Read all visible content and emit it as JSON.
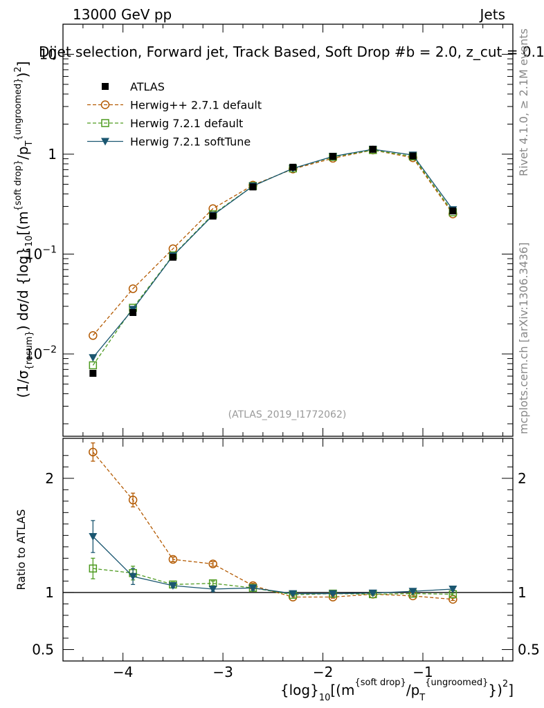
{
  "header": {
    "energy_label": "13000 GeV pp",
    "category_label": "Jets",
    "title": "Dijet selection, Forward jet, Track Based, Soft Drop #b = 2.0, z_cut = 0.1"
  },
  "side_labels": {
    "rivet": "Rivet 4.1.0, ≥ 2.1M events",
    "mcplots": "mcplots.cern.ch [arXiv:1306.3436]"
  },
  "analysis_id": "(ATLAS_2019_I1772062)",
  "ratio_ylabel": "Ratio to ATLAS",
  "chart_data": {
    "type": "line",
    "title": "Dijet selection, Forward jet, Track Based, Soft Drop #b = 2.0, z_cut = 0.1",
    "xlabel": "{log}_10[(m^{soft drop}/p_T^{ungroomed})^2]",
    "ylabel": "(1/σ_{resum}) dσ/d {log}_10[(m^{soft drop}/p_T^{ungroomed})^2]",
    "xlim": [
      -4.6,
      -0.1
    ],
    "ylim": [
      0.0015,
      20
    ],
    "yscale": "log",
    "x": [
      -4.3,
      -3.9,
      -3.5,
      -3.1,
      -2.7,
      -2.3,
      -1.9,
      -1.5,
      -1.1,
      -0.7
    ],
    "x_ticks": [
      "−4",
      "−3",
      "−2",
      "−1"
    ],
    "y_ticks": [
      "10^-2",
      "10^-1",
      "1",
      "10"
    ],
    "series": [
      {
        "name": "ATLAS",
        "color": "#000000",
        "marker": "square-filled",
        "values": [
          0.0064,
          0.026,
          0.093,
          0.24,
          0.47,
          0.74,
          0.95,
          1.12,
          0.96,
          0.27
        ]
      },
      {
        "name": "Herwig++ 2.7.1 default",
        "color": "#b35900",
        "marker": "circle-open",
        "dash": "5,3",
        "values": [
          0.0153,
          0.045,
          0.113,
          0.285,
          0.49,
          0.71,
          0.91,
          1.1,
          0.92,
          0.252
        ]
      },
      {
        "name": "Herwig 7.2.1 default",
        "color": "#4d9a1f",
        "marker": "square-open",
        "dash": "5,3",
        "values": [
          0.0077,
          0.029,
          0.097,
          0.25,
          0.48,
          0.72,
          0.94,
          1.1,
          0.95,
          0.262
        ]
      },
      {
        "name": "Herwig 7.2.1 softTune",
        "color": "#1a5670",
        "marker": "triangle-down-filled",
        "values": [
          0.0092,
          0.028,
          0.096,
          0.245,
          0.48,
          0.72,
          0.95,
          1.12,
          0.98,
          0.278
        ]
      }
    ],
    "ratio": {
      "ylim": [
        0.4,
        2.35
      ],
      "y_ticks": [
        "0.5",
        "1",
        "2"
      ],
      "series": [
        {
          "name": "Herwig++ 2.7.1 default",
          "values": [
            2.23,
            1.81,
            1.29,
            1.25,
            1.06,
            0.96,
            0.96,
            0.985,
            0.97,
            0.94
          ],
          "errors": [
            0.08,
            0.06,
            0.02,
            0.02,
            0.02,
            0.01,
            0.01,
            0.01,
            0.01,
            0.01
          ]
        },
        {
          "name": "Herwig 7.2.1 default",
          "values": [
            1.21,
            1.17,
            1.07,
            1.08,
            1.04,
            0.98,
            0.99,
            0.985,
            0.99,
            0.985
          ],
          "errors": [
            0.09,
            0.06,
            0.02,
            0.02,
            0.02,
            0.01,
            0.01,
            0.01,
            0.01,
            0.01
          ]
        },
        {
          "name": "Herwig 7.2.1 softTune",
          "values": [
            1.49,
            1.14,
            1.06,
            1.03,
            1.04,
            0.99,
            0.99,
            0.995,
            1.01,
            1.03
          ],
          "errors": [
            0.14,
            0.07,
            0.02,
            0.02,
            0.02,
            0.01,
            0.01,
            0.01,
            0.01,
            0.01
          ]
        }
      ]
    }
  }
}
